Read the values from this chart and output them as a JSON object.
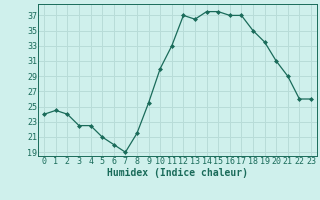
{
  "x": [
    0,
    1,
    2,
    3,
    4,
    5,
    6,
    7,
    8,
    9,
    10,
    11,
    12,
    13,
    14,
    15,
    16,
    17,
    18,
    19,
    20,
    21,
    22,
    23
  ],
  "y": [
    24,
    24.5,
    24,
    22.5,
    22.5,
    21,
    20,
    19,
    21.5,
    25.5,
    30,
    33,
    37,
    36.5,
    37.5,
    37.5,
    37,
    37,
    35,
    33.5,
    31,
    29,
    26,
    26
  ],
  "line_color": "#1a6b5a",
  "marker": "D",
  "marker_size": 2.0,
  "bg_color": "#cff0ec",
  "grid_color": "#b8dcd8",
  "xlabel": "Humidex (Indice chaleur)",
  "yticks": [
    19,
    21,
    23,
    25,
    27,
    29,
    31,
    33,
    35,
    37
  ],
  "xlim": [
    -0.5,
    23.5
  ],
  "ylim": [
    18.5,
    38.5
  ],
  "tick_fontsize": 6.0,
  "xlabel_fontsize": 7.0
}
